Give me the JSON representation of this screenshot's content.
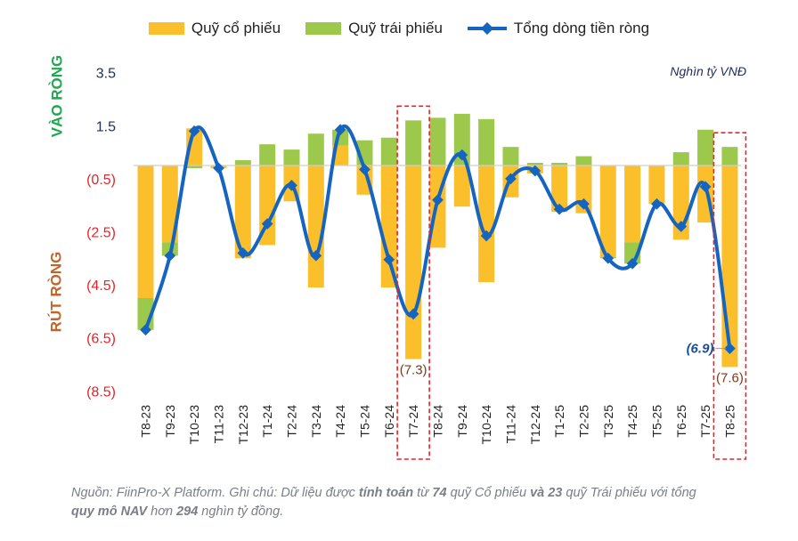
{
  "legend": {
    "stock": "Quỹ cổ phiếu",
    "bond": "Quỹ trái phiếu",
    "total": "Tổng dòng tiền ròng"
  },
  "unit_label": "Nghìn tỷ VNĐ",
  "side_labels": {
    "inflow": "VÀO RÒNG",
    "outflow": "RÚT RÒNG"
  },
  "colors": {
    "stock": "#FBBF2C",
    "bond": "#9CC84B",
    "total": "#1565C0",
    "highlight_box": "#E8232A",
    "inflow_label": "#1FA84F",
    "outflow_label": "#C0662A",
    "positive_tick": "#1F2D5A",
    "negative_tick": "#E8232A"
  },
  "chart_data": {
    "type": "bar",
    "stacked": true,
    "ylim": [
      -8.5,
      3.5
    ],
    "y_ticks": [
      3.5,
      1.5,
      -0.5,
      -2.5,
      -4.5,
      -6.5,
      -8.5
    ],
    "y_tick_labels": [
      "3.5",
      "1.5",
      "(0.5)",
      "(2.5)",
      "(4.5)",
      "(6.5)",
      "(8.5)"
    ],
    "categories": [
      "T8-23",
      "T9-23",
      "T10-23",
      "T11-23",
      "T12-23",
      "T1-24",
      "T2-24",
      "T3-24",
      "T4-24",
      "T5-24",
      "T6-24",
      "T7-24",
      "T8-24",
      "T9-24",
      "T10-24",
      "T11-24",
      "T12-24",
      "T1-25",
      "T2-25",
      "T3-25",
      "T4-25",
      "T5-25",
      "T6-25",
      "T7-25",
      "T8-25"
    ],
    "series": [
      {
        "name": "Quỹ cổ phiếu",
        "type": "bar",
        "values": [
          -5.0,
          -2.9,
          1.4,
          -0.1,
          -3.5,
          -3.0,
          -1.35,
          -4.6,
          0.75,
          -1.1,
          -4.6,
          -7.3,
          -3.1,
          -1.55,
          -4.4,
          -1.2,
          -0.3,
          -1.75,
          -1.8,
          -3.45,
          -2.9,
          -1.45,
          -2.8,
          -2.15,
          -7.6
        ]
      },
      {
        "name": "Quỹ trái phiếu",
        "type": "bar",
        "values": [
          -1.2,
          -0.5,
          -0.1,
          0.0,
          0.2,
          0.8,
          0.6,
          1.2,
          0.6,
          0.95,
          1.05,
          1.7,
          1.8,
          1.95,
          1.75,
          0.7,
          0.1,
          0.1,
          0.35,
          -0.05,
          -0.8,
          0.0,
          0.5,
          1.35,
          0.7
        ]
      },
      {
        "name": "Tổng dòng tiền ròng",
        "type": "line",
        "values": [
          -6.2,
          -3.4,
          1.3,
          -0.1,
          -3.3,
          -2.2,
          -0.75,
          -3.4,
          1.35,
          -0.15,
          -3.55,
          -5.6,
          -1.3,
          0.4,
          -2.65,
          -0.5,
          -0.2,
          -1.65,
          -1.45,
          -3.5,
          -3.7,
          -1.45,
          -2.3,
          -0.8,
          -6.9
        ]
      }
    ],
    "annotations": [
      {
        "category": "T7-24",
        "text": "(7.3)",
        "target": "Quỹ cổ phiếu",
        "highlighted": true
      },
      {
        "category": "T8-25",
        "text": "(7.6)",
        "target": "Quỹ cổ phiếu",
        "highlighted": true
      },
      {
        "category": "T8-25",
        "text": "(6.9)",
        "target": "Tổng dòng tiền ròng"
      }
    ],
    "grid": false,
    "legend_position": "top"
  },
  "note": [
    {
      "t": "Nguồn: FiinPro-X Platform. Ghi chú: Dữ liệu được ",
      "b": false
    },
    {
      "t": "tính toán",
      "b": true
    },
    {
      "t": " từ ",
      "b": false
    },
    {
      "t": "74",
      "b": true
    },
    {
      "t": " quỹ Cổ phiếu ",
      "b": false
    },
    {
      "t": "và 23",
      "b": true
    },
    {
      "t": " quỹ Trái phiếu với tổng ",
      "b": false
    },
    {
      "t": "quy mô NAV",
      "b": true
    },
    {
      "t": " hơn ",
      "b": false
    },
    {
      "t": "294",
      "b": true
    },
    {
      "t": " nghìn tỷ đồng.",
      "b": false
    }
  ]
}
